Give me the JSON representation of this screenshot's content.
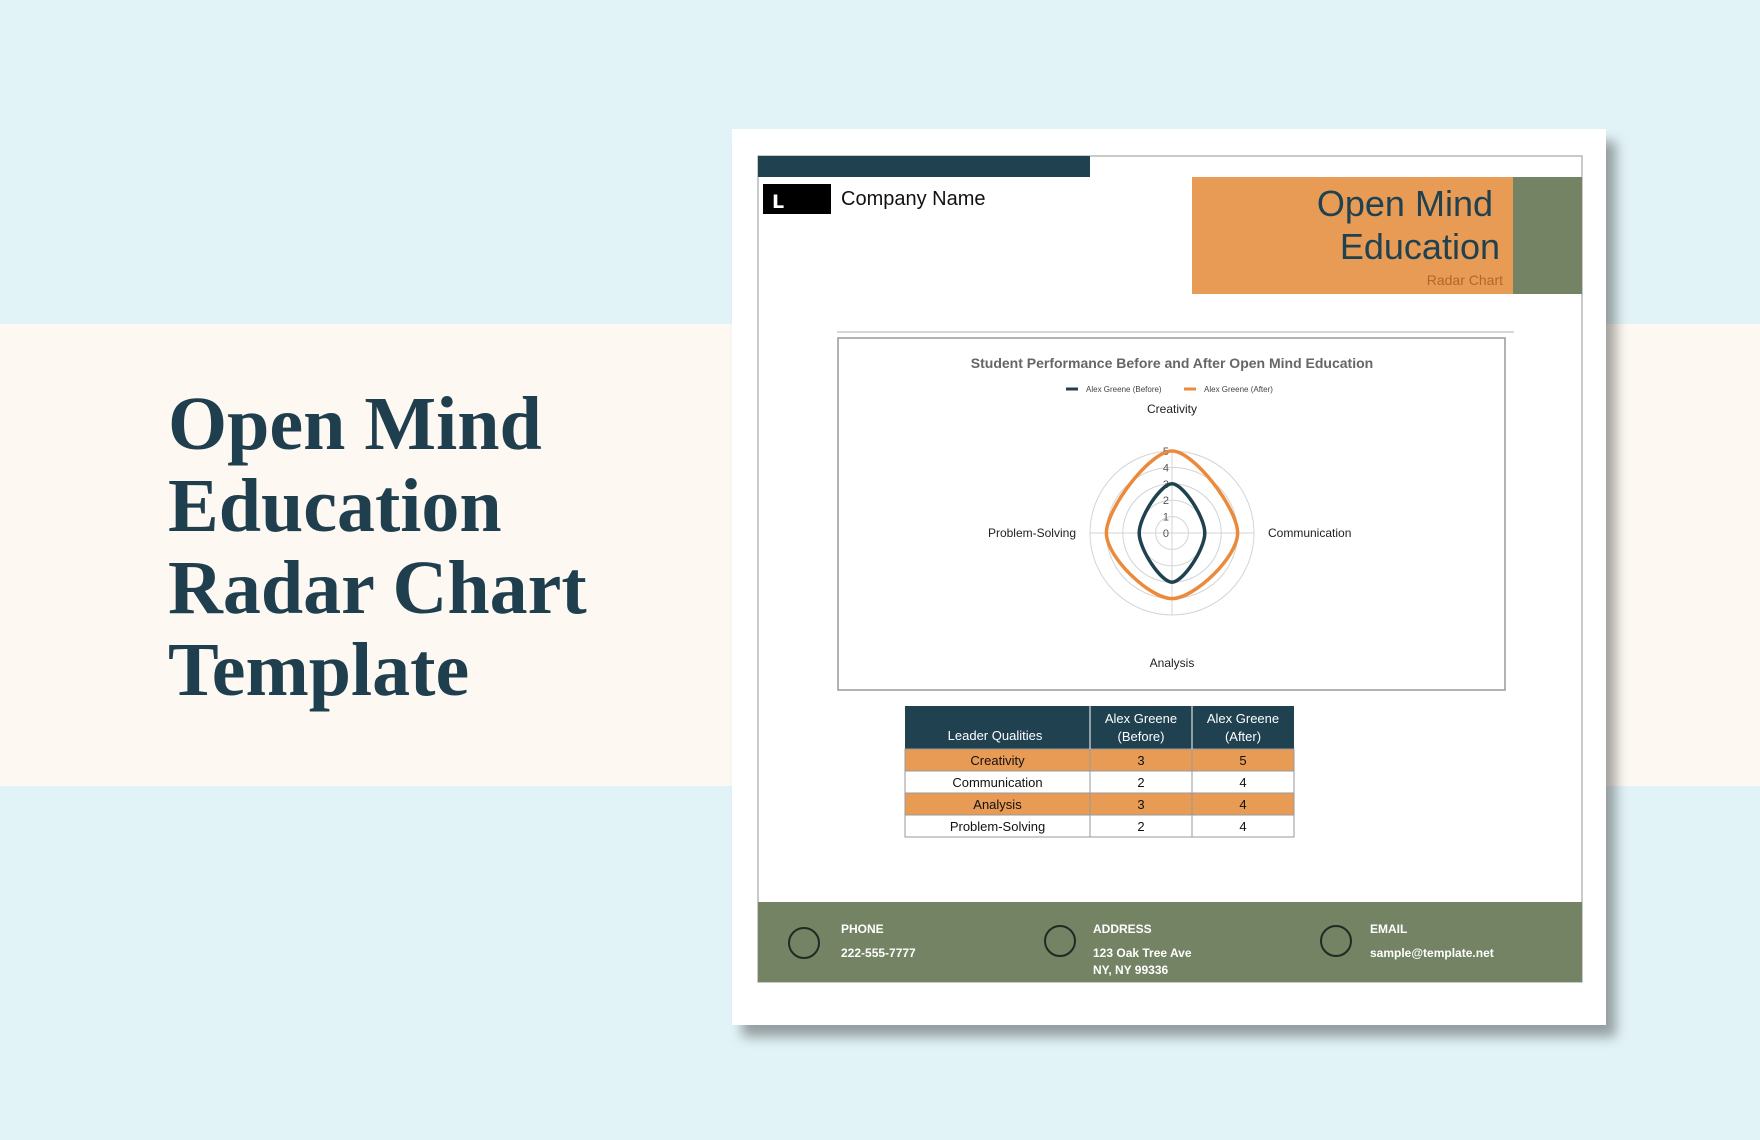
{
  "hero": {
    "title_lines": [
      "Open Mind",
      "Education",
      "Radar Chart",
      "Template"
    ]
  },
  "document": {
    "logo": "L",
    "company": "Company Name",
    "title_lines": [
      "Open Mind",
      "Education"
    ],
    "subtitle": "Radar Chart",
    "table": {
      "header": [
        "Leader Qualities",
        "Alex Greene (Before)",
        "Alex Greene (After)"
      ],
      "rows": [
        [
          "Creativity",
          3,
          5
        ],
        [
          "Communication",
          2,
          4
        ],
        [
          "Analysis",
          3,
          4
        ],
        [
          "Problem-Solving",
          2,
          4
        ]
      ]
    },
    "footer": [
      {
        "label": "PHONE",
        "lines": [
          "222-555-7777"
        ]
      },
      {
        "label": "ADDRESS",
        "lines": [
          "123 Oak Tree Ave",
          "NY, NY 99336"
        ]
      },
      {
        "label": "EMAIL",
        "lines": [
          "sample@template.net"
        ]
      }
    ]
  },
  "chart_data": {
    "type": "radar",
    "title": "Student Performance Before and After Open Mind Education",
    "categories": [
      "Creativity",
      "Communication",
      "Analysis",
      "Problem-Solving"
    ],
    "series": [
      {
        "name": "Alex Greene (Before)",
        "color": "#1f4150",
        "values": [
          3,
          2,
          3,
          2
        ]
      },
      {
        "name": "Alex Greene (After)",
        "color": "#ec8a3c",
        "values": [
          5,
          4,
          4,
          4
        ]
      }
    ],
    "rlim": [
      0,
      5
    ],
    "rticks": [
      0,
      1,
      2,
      3,
      4,
      5
    ],
    "grid": true,
    "legend": "top"
  }
}
